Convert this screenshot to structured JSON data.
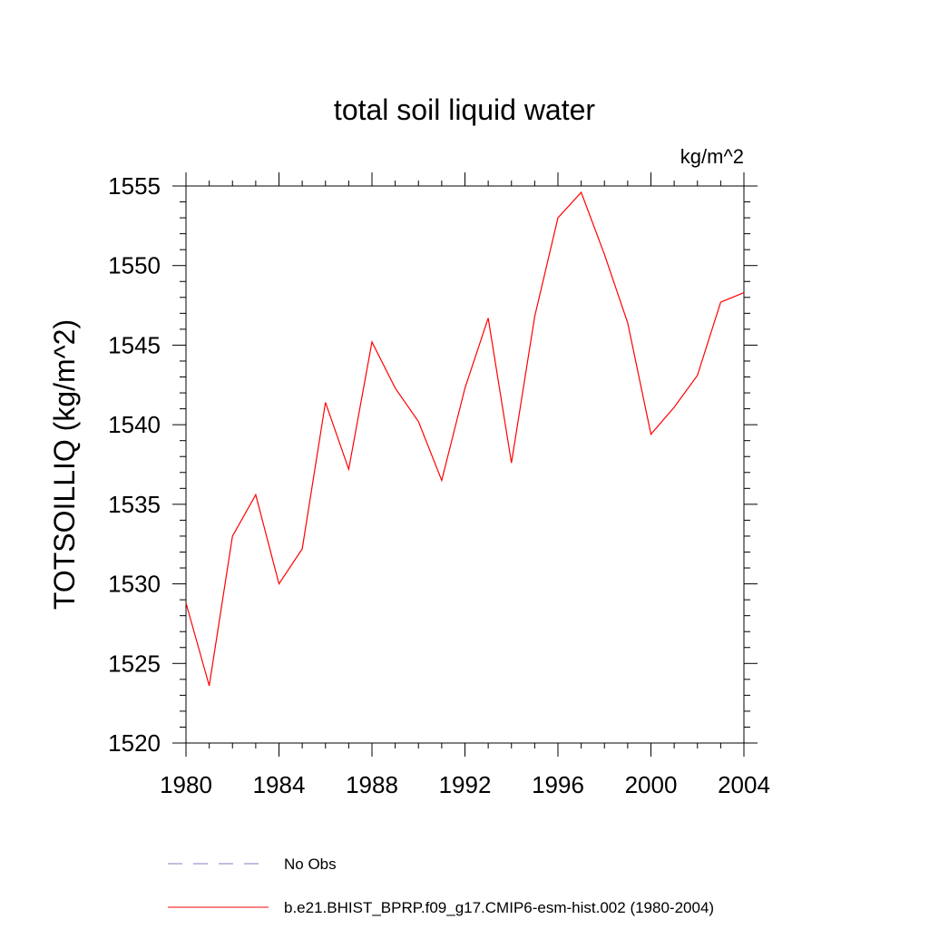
{
  "chart_data": {
    "type": "line",
    "title": "total soil liquid water",
    "units_label": "kg/m^2",
    "ylabel": "TOTSOILLIQ  (kg/m^2)",
    "xlabel": "",
    "xlim": [
      1980,
      2004
    ],
    "ylim": [
      1520,
      1555
    ],
    "x_ticks": [
      1980,
      1984,
      1988,
      1992,
      1996,
      2000,
      2004
    ],
    "y_ticks": [
      1520,
      1525,
      1530,
      1535,
      1540,
      1545,
      1550,
      1555
    ],
    "grid": false,
    "legend_placement": "bottom",
    "series": [
      {
        "name": "No Obs",
        "style": "dashed",
        "color": "#8080c0",
        "x": [],
        "values": []
      },
      {
        "name": "b.e21.BHIST_BPRP.f09_g17.CMIP6-esm-hist.002 (1980-2004)",
        "style": "solid",
        "color": "#ff0000",
        "x": [
          1980,
          1981,
          1982,
          1983,
          1984,
          1985,
          1986,
          1987,
          1988,
          1989,
          1990,
          1991,
          1992,
          1993,
          1994,
          1995,
          1996,
          1997,
          1998,
          1999,
          2000,
          2001,
          2002,
          2003,
          2004
        ],
        "values": [
          1528.8,
          1523.6,
          1533.0,
          1535.6,
          1530.0,
          1532.2,
          1541.4,
          1537.2,
          1545.2,
          1542.3,
          1540.2,
          1536.5,
          1542.3,
          1546.7,
          1537.6,
          1546.8,
          1553.0,
          1554.6,
          1550.7,
          1546.4,
          1539.4,
          1541.1,
          1543.1,
          1547.7,
          1548.3
        ]
      }
    ]
  }
}
